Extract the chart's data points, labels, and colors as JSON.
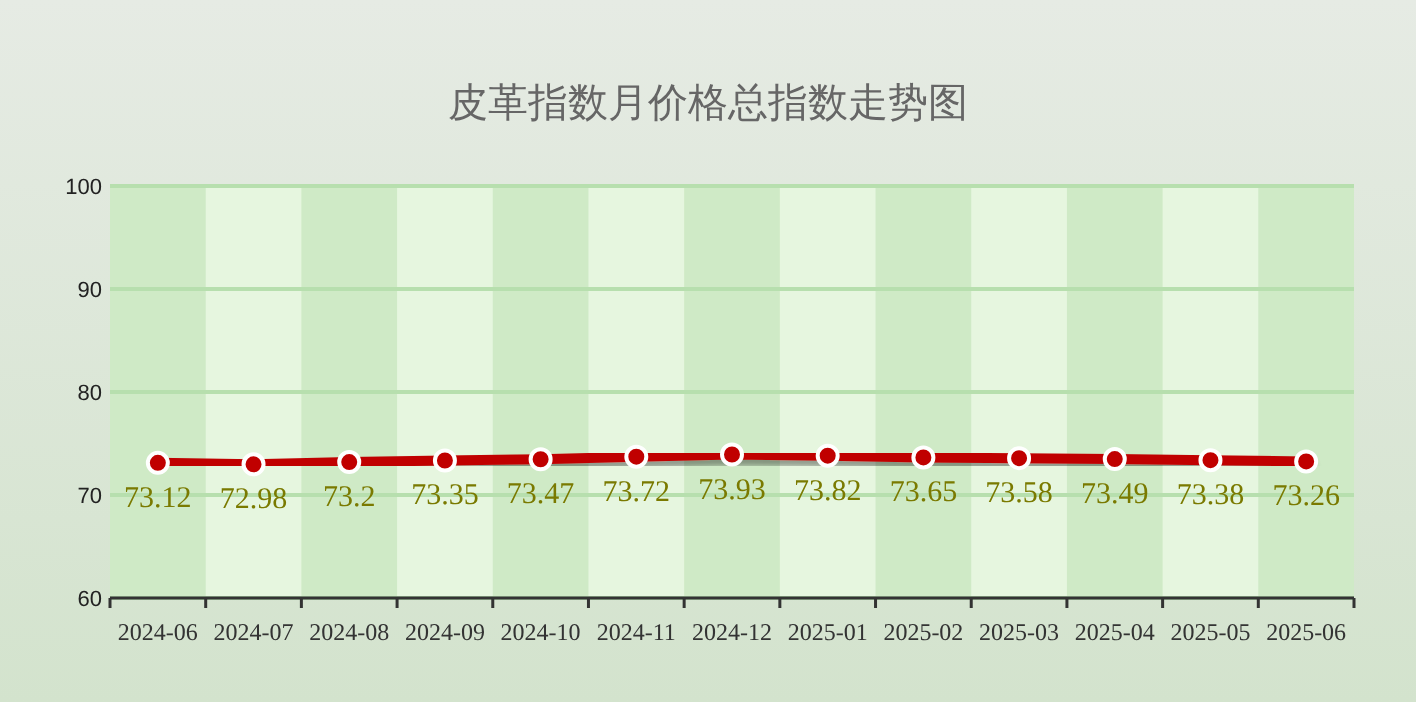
{
  "chart_data": {
    "type": "line",
    "title": "皮革指数月价格总指数走势图",
    "categories": [
      "2024-06",
      "2024-07",
      "2024-08",
      "2024-09",
      "2024-10",
      "2024-11",
      "2024-12",
      "2025-01",
      "2025-02",
      "2025-03",
      "2025-04",
      "2025-05",
      "2025-06"
    ],
    "series": [
      {
        "color": "#c00000",
        "values": [
          73.12,
          72.98,
          73.2,
          73.35,
          73.47,
          73.72,
          73.93,
          73.82,
          73.65,
          73.58,
          73.49,
          73.38,
          73.26
        ]
      }
    ],
    "ylim": [
      60,
      100
    ],
    "yticks": [
      60,
      70,
      80,
      90,
      100
    ],
    "grid": "y",
    "marker": "circle",
    "line_style": "solid",
    "data_labels": true,
    "bands": [
      {
        "axis": "x",
        "from": "2024-06",
        "to": "2024-06",
        "color": "#cfeac6"
      },
      {
        "axis": "x",
        "from": "2024-08",
        "to": "2024-08",
        "color": "#cfeac6"
      },
      {
        "axis": "x",
        "from": "2024-10",
        "to": "2024-10",
        "color": "#cfeac6"
      },
      {
        "axis": "x",
        "from": "2024-12",
        "to": "2024-12",
        "color": "#cfeac6"
      },
      {
        "axis": "x",
        "from": "2025-02",
        "to": "2025-02",
        "color": "#cfeac6"
      },
      {
        "axis": "x",
        "from": "2025-04",
        "to": "2025-04",
        "color": "#cfeac6"
      },
      {
        "axis": "x",
        "from": "2025-06",
        "to": "2025-06",
        "color": "#cfeac6"
      }
    ]
  }
}
